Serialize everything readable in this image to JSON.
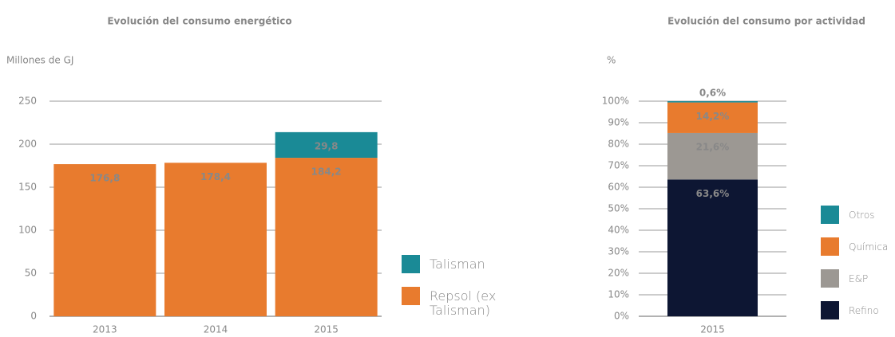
{
  "chart_data": [
    {
      "type": "stacked-bar",
      "title": "Evolución del consumo energético",
      "y_label": "Millones de GJ",
      "categories": [
        "2013",
        "2014",
        "2015"
      ],
      "series": [
        {
          "name": "Repsol (ex Talisman)",
          "color": "#e87b2e",
          "values": [
            176.8,
            178.4,
            184.2
          ],
          "value_labels": [
            "176,8",
            "178,4",
            "184,2"
          ]
        },
        {
          "name": "Talisman",
          "color": "#1a8a96",
          "values": [
            null,
            null,
            29.8
          ],
          "value_labels": [
            null,
            null,
            "29,8"
          ]
        }
      ],
      "ylim": [
        0,
        250
      ],
      "yticks": [
        0,
        50,
        100,
        150,
        200,
        250
      ],
      "grid": true
    },
    {
      "type": "stacked-bar",
      "title": "Evolución del consumo por actividad",
      "y_label": "%",
      "categories": [
        "2015"
      ],
      "series": [
        {
          "name": "Refino",
          "color": "#0d1633",
          "values": [
            63.6
          ],
          "value_labels": [
            "63,6%"
          ]
        },
        {
          "name": "E&P",
          "color": "#9c9893",
          "values": [
            21.6
          ],
          "value_labels": [
            "21,6%"
          ]
        },
        {
          "name": "Química",
          "color": "#e87b2e",
          "values": [
            14.2
          ],
          "value_labels": [
            "14,2%"
          ]
        },
        {
          "name": "Otros",
          "color": "#1a8a96",
          "values": [
            0.6
          ],
          "value_labels": [
            "0,6%"
          ]
        }
      ],
      "ylim": [
        0,
        100
      ],
      "yticks": [
        {
          "value": 0,
          "label": "0%"
        },
        {
          "value": 10,
          "label": "10%"
        },
        {
          "value": 20,
          "label": "20%"
        },
        {
          "value": 30,
          "label": "30%"
        },
        {
          "value": 40,
          "label": "40%"
        },
        {
          "value": 50,
          "label": "50%"
        },
        {
          "value": 60,
          "label": "60%"
        },
        {
          "value": 70,
          "label": "70%"
        },
        {
          "value": 80,
          "label": "80%"
        },
        {
          "value": 90,
          "label": "90%"
        },
        {
          "value": 100,
          "label": "100%"
        }
      ],
      "grid": true
    }
  ]
}
